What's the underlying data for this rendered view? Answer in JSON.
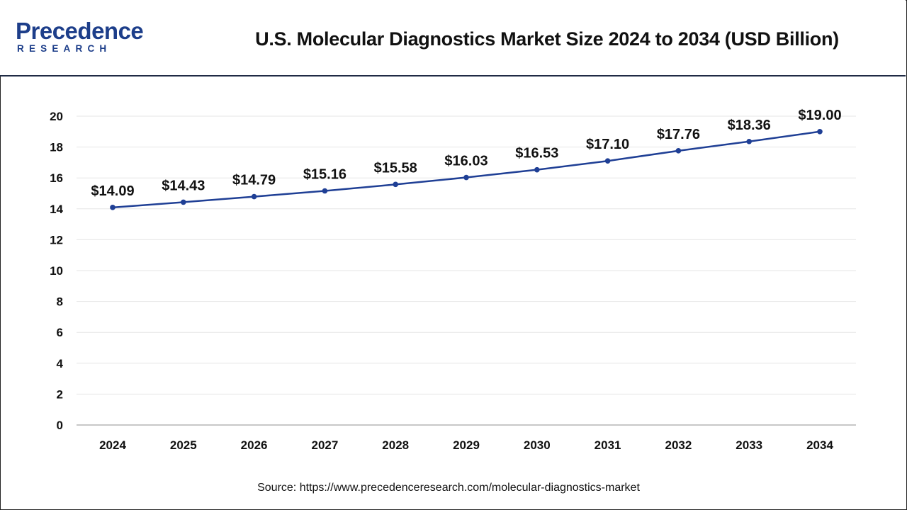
{
  "header": {
    "logo_top": "Precedence",
    "logo_bottom": "RESEARCH",
    "title": "U.S. Molecular Diagnostics Market Size 2024 to 2034 (USD Billion)"
  },
  "source": "Source: https://www.precedenceresearch.com/molecular-diagnostics-market",
  "colors": {
    "line": "#1f3f95",
    "brand": "#1d3e8a",
    "grid": "#e6e6e6"
  },
  "chart_data": {
    "type": "line",
    "title": "U.S. Molecular Diagnostics Market Size 2024 to 2034 (USD Billion)",
    "xlabel": "",
    "ylabel": "",
    "categories": [
      "2024",
      "2025",
      "2026",
      "2027",
      "2028",
      "2029",
      "2030",
      "2031",
      "2032",
      "2033",
      "2034"
    ],
    "values": [
      14.09,
      14.43,
      14.79,
      15.16,
      15.58,
      16.03,
      16.53,
      17.1,
      17.76,
      18.36,
      19.0
    ],
    "data_labels": [
      "$14.09",
      "$14.43",
      "$14.79",
      "$15.16",
      "$15.58",
      "$16.03",
      "$16.53",
      "$17.10",
      "$17.76",
      "$18.36",
      "$19.00"
    ],
    "ylim": [
      0,
      20
    ],
    "yticks": [
      "0",
      "2",
      "4",
      "6",
      "8",
      "10",
      "12",
      "14",
      "16",
      "18",
      "20"
    ],
    "grid": true,
    "legend": "none"
  }
}
